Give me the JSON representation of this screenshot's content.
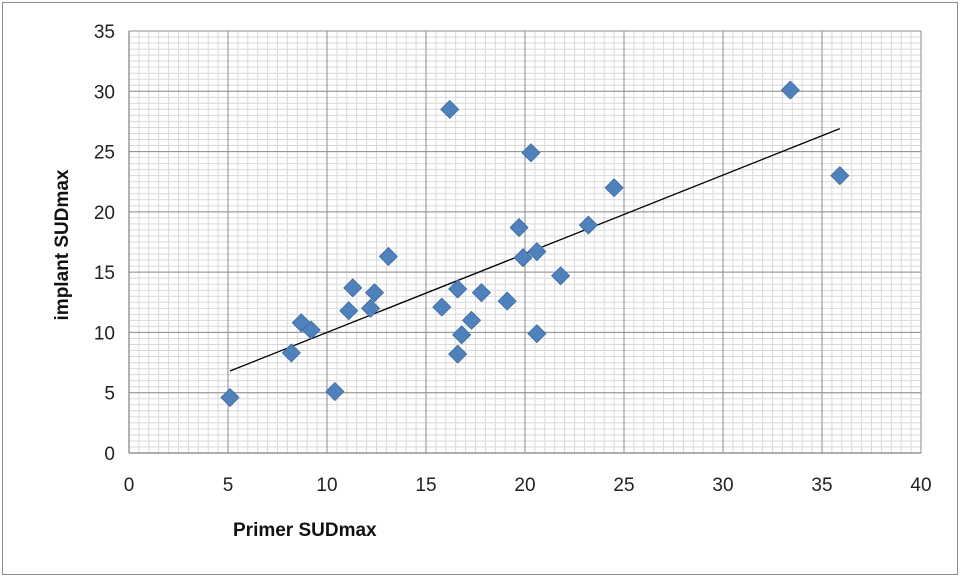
{
  "chart_data": {
    "type": "scatter",
    "title": "",
    "xlabel": "Primer SUDmax",
    "ylabel": "implant SUDmax",
    "xlim": [
      0,
      40
    ],
    "ylim": [
      0,
      35
    ],
    "x_ticks": [
      0,
      5,
      10,
      15,
      20,
      25,
      30,
      35,
      40
    ],
    "y_ticks": [
      0,
      5,
      10,
      15,
      20,
      25,
      30,
      35
    ],
    "x_tick_labels": [
      "0",
      "5",
      "10",
      "15",
      "20",
      "25",
      "30",
      "35",
      "40"
    ],
    "y_tick_labels": [
      "0",
      "5",
      "10",
      "15",
      "20",
      "25",
      "30",
      "35"
    ],
    "grid": true,
    "legend": "none",
    "marker": "diamond",
    "marker_color": "#4f81bd",
    "trendline": {
      "type": "linear",
      "x": [
        5.1,
        35.9
      ],
      "y": [
        6.8,
        26.9
      ],
      "color": "#000000"
    },
    "series": [
      {
        "x": [
          5.1,
          8.2,
          8.7,
          9.2,
          10.4,
          11.1,
          11.3,
          12.2,
          12.4,
          13.1,
          15.8,
          16.2,
          16.6,
          16.6,
          16.8,
          17.3,
          17.8,
          19.1,
          19.7,
          19.9,
          20.3,
          20.6,
          20.6,
          21.8,
          23.2,
          24.5,
          33.4,
          35.9
        ],
        "y": [
          4.6,
          8.3,
          10.8,
          10.2,
          5.1,
          11.8,
          13.7,
          12.0,
          13.3,
          16.3,
          12.1,
          28.5,
          13.6,
          8.2,
          9.8,
          11.0,
          13.3,
          12.6,
          18.7,
          16.2,
          24.9,
          16.7,
          9.9,
          14.7,
          18.9,
          22.0,
          30.1,
          23.0
        ]
      }
    ]
  }
}
